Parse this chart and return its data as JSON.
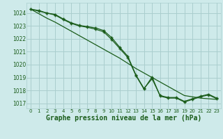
{
  "title": "Graphe pression niveau de la mer (hPa)",
  "background_color": "#ceeaea",
  "grid_color": "#aacece",
  "line_color": "#1a5c1a",
  "hours": [
    0,
    1,
    2,
    3,
    4,
    5,
    6,
    7,
    8,
    9,
    10,
    11,
    12,
    13,
    14,
    15,
    16,
    17,
    18,
    19,
    20,
    21,
    22,
    23
  ],
  "line_marked1": [
    1024.3,
    1024.2,
    1024.0,
    1023.9,
    1023.55,
    1023.25,
    1023.05,
    1022.95,
    1022.85,
    1022.65,
    1022.1,
    1021.35,
    1020.65,
    1019.2,
    1018.15,
    1018.9,
    1017.6,
    1017.45,
    1017.45,
    1017.15,
    1017.35,
    1017.55,
    1017.7,
    1017.4
  ],
  "line_marked2": [
    1024.3,
    1024.15,
    1024.0,
    1023.85,
    1023.5,
    1023.2,
    1023.0,
    1022.9,
    1022.75,
    1022.55,
    1021.95,
    1021.25,
    1020.55,
    1019.15,
    1018.1,
    1019.05,
    1017.55,
    1017.4,
    1017.4,
    1017.1,
    1017.3,
    1017.5,
    1017.65,
    1017.35
  ],
  "line_plain": [
    1024.3,
    1023.95,
    1023.6,
    1023.3,
    1022.95,
    1022.6,
    1022.25,
    1021.9,
    1021.55,
    1021.2,
    1020.85,
    1020.5,
    1020.1,
    1019.7,
    1019.35,
    1019.0,
    1018.65,
    1018.3,
    1017.95,
    1017.6,
    1017.5,
    1017.4,
    1017.35,
    1017.3
  ],
  "ylim": [
    1016.6,
    1024.8
  ],
  "yticks": [
    1017,
    1018,
    1019,
    1020,
    1021,
    1022,
    1023,
    1024
  ]
}
